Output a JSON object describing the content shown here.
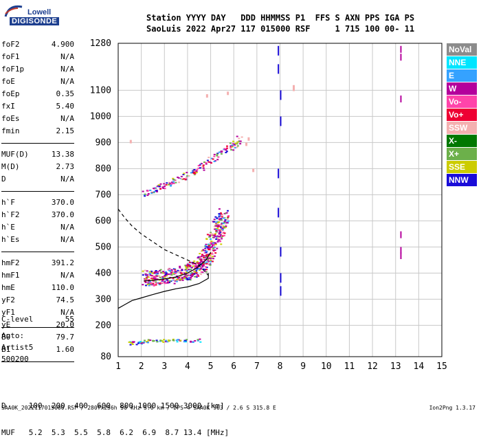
{
  "logo": {
    "top": "Lowell",
    "bottom": "DIGISONDE"
  },
  "header": {
    "line1": "Station YYYY DAY   DDD HHMMSS P1  FFS S AXN PPS IGA PS",
    "line2": "SaoLuis 2022 Apr27 117 015000 RSF     1 715 100 00- 11"
  },
  "params": [
    {
      "name": "foF2",
      "value": "4.900"
    },
    {
      "name": "foF1",
      "value": "N/A"
    },
    {
      "name": "foF1p",
      "value": "N/A"
    },
    {
      "name": "foE",
      "value": "N/A"
    },
    {
      "name": "foEp",
      "value": "0.35"
    },
    {
      "name": "fxI",
      "value": "5.40"
    },
    {
      "name": "foEs",
      "value": "N/A"
    },
    {
      "name": "fmin",
      "value": "2.15"
    },
    {
      "name": "MUF(D)",
      "value": "13.38"
    },
    {
      "name": "M(D)",
      "value": "2.73"
    },
    {
      "name": "D",
      "value": "N/A"
    },
    {
      "name": "h`F",
      "value": "370.0"
    },
    {
      "name": "h`F2",
      "value": "370.0"
    },
    {
      "name": "h`E",
      "value": "N/A"
    },
    {
      "name": "h`Es",
      "value": "N/A"
    },
    {
      "name": "hmF2",
      "value": "391.2"
    },
    {
      "name": "hmF1",
      "value": "N/A"
    },
    {
      "name": "hmE",
      "value": "110.0"
    },
    {
      "name": "yF2",
      "value": "74.5"
    },
    {
      "name": "yF1",
      "value": "N/A"
    },
    {
      "name": "yE",
      "value": "20.0"
    },
    {
      "name": "B0",
      "value": "79.7"
    },
    {
      "name": "B1",
      "value": "1.60"
    },
    {
      "name": "C-level",
      "value": "55"
    }
  ],
  "auto": {
    "line1": "Auto:",
    "line2": "Artist5",
    "line3": "500200"
  },
  "legend": [
    {
      "label": "NoVal",
      "color": "#8c8c8c"
    },
    {
      "label": "NNE",
      "color": "#00e5ff"
    },
    {
      "label": "E",
      "color": "#35a2ff"
    },
    {
      "label": "W",
      "color": "#b4009c"
    },
    {
      "label": "Vo-",
      "color": "#ff44aa"
    },
    {
      "label": "Vo+",
      "color": "#ee0033"
    },
    {
      "label": "SSW",
      "color": "#f4b0b0"
    },
    {
      "label": "X-",
      "color": "#007800"
    },
    {
      "label": "X+",
      "color": "#6cb04a"
    },
    {
      "label": "SSE",
      "color": "#cccc00"
    },
    {
      "label": "NNW",
      "color": "#1a0cd8"
    }
  ],
  "bottom_table": {
    "row1": "D     100  200  400  600  800 1000 1500 3000 [km]",
    "row2": "MUF   5.2  5.3  5.5  5.8  6.2  6.9  8.7 13.4 [MHz]"
  },
  "footer": "SAA0K_2022117015000.RSF / 280fx256h 50 kHz 5.0 km / DPS-4 SAA0K 903 / 2.6 S 315.8 E",
  "footer_version": "Ion2Png 1.3.17",
  "chart_data": {
    "type": "scatter",
    "title": "",
    "xlabel": "",
    "ylabel": "",
    "xlim": [
      1,
      15
    ],
    "ylim": [
      80,
      1280
    ],
    "x_ticks": [
      1,
      2,
      3,
      4,
      5,
      6,
      7,
      8,
      9,
      10,
      11,
      12,
      13,
      14,
      15
    ],
    "y_ticks": [
      80,
      200,
      300,
      400,
      500,
      600,
      700,
      800,
      900,
      1000,
      1100,
      1280
    ],
    "grid": true,
    "traces": [
      {
        "name": "F2 O-trace",
        "points": [
          [
            2.2,
            365
          ],
          [
            2.5,
            368
          ],
          [
            3.0,
            372
          ],
          [
            3.5,
            378
          ],
          [
            4.0,
            390
          ],
          [
            4.3,
            400
          ],
          [
            4.6,
            420
          ],
          [
            4.8,
            450
          ],
          [
            5.0,
            490
          ],
          [
            5.2,
            530
          ],
          [
            5.4,
            575
          ],
          [
            5.5,
            610
          ]
        ]
      },
      {
        "name": "F2 second hop",
        "points": [
          [
            2.1,
            700
          ],
          [
            2.6,
            715
          ],
          [
            3.0,
            730
          ],
          [
            3.5,
            750
          ],
          [
            4.0,
            770
          ],
          [
            4.5,
            800
          ],
          [
            5.0,
            830
          ],
          [
            5.5,
            860
          ],
          [
            6.0,
            885
          ],
          [
            6.3,
            915
          ]
        ]
      },
      {
        "name": "low echoes",
        "points": [
          [
            1.5,
            130
          ],
          [
            1.8,
            130
          ],
          [
            2.0,
            135
          ],
          [
            2.5,
            140
          ],
          [
            3.0,
            140
          ],
          [
            3.5,
            140
          ],
          [
            4.0,
            140
          ],
          [
            4.5,
            140
          ]
        ]
      },
      {
        "name": "interference line 8 MHz",
        "points": [
          [
            7.9,
            1270
          ],
          [
            7.9,
            1200
          ],
          [
            8.0,
            1100
          ],
          [
            8.0,
            1000
          ],
          [
            7.9,
            800
          ],
          [
            7.9,
            650
          ],
          [
            8.0,
            500
          ],
          [
            8.0,
            400
          ],
          [
            8.0,
            350
          ]
        ]
      },
      {
        "name": "interference line 13.2 MHz",
        "points": [
          [
            13.2,
            1270
          ],
          [
            13.2,
            1240
          ],
          [
            13.2,
            560
          ],
          [
            13.2,
            500
          ],
          [
            13.2,
            480
          ],
          [
            13.2,
            1080
          ]
        ]
      },
      {
        "name": "misc",
        "points": [
          [
            8.55,
            1110
          ],
          [
            8.55,
            1120
          ],
          [
            6.8,
            800
          ],
          [
            6.5,
            900
          ],
          [
            6.6,
            920
          ],
          [
            4.8,
            1085
          ],
          [
            5.7,
            1095
          ],
          [
            1.5,
            910
          ]
        ]
      }
    ],
    "profile_curves": [
      {
        "name": "true height profile (solid)",
        "style": "solid",
        "points": [
          [
            1.0,
            265
          ],
          [
            1.3,
            280
          ],
          [
            1.6,
            295
          ],
          [
            2.0,
            305
          ],
          [
            2.5,
            318
          ],
          [
            3.0,
            330
          ],
          [
            3.5,
            340
          ],
          [
            4.0,
            347
          ],
          [
            4.5,
            360
          ],
          [
            4.9,
            380
          ],
          [
            4.9,
            400
          ]
        ]
      },
      {
        "name": "profile extrapolation (solid)",
        "style": "solid",
        "points": [
          [
            2.1,
            370
          ],
          [
            2.5,
            372
          ],
          [
            3.0,
            378
          ],
          [
            3.5,
            385
          ],
          [
            4.0,
            400
          ],
          [
            4.4,
            420
          ],
          [
            4.8,
            450
          ],
          [
            5.0,
            480
          ]
        ]
      },
      {
        "name": "topside (dashed)",
        "style": "dashed",
        "points": [
          [
            1.0,
            645
          ],
          [
            1.3,
            610
          ],
          [
            1.6,
            580
          ],
          [
            2.0,
            550
          ],
          [
            2.5,
            520
          ],
          [
            3.0,
            490
          ],
          [
            3.5,
            470
          ],
          [
            4.0,
            450
          ],
          [
            4.5,
            430
          ],
          [
            4.9,
            391
          ]
        ]
      }
    ]
  }
}
